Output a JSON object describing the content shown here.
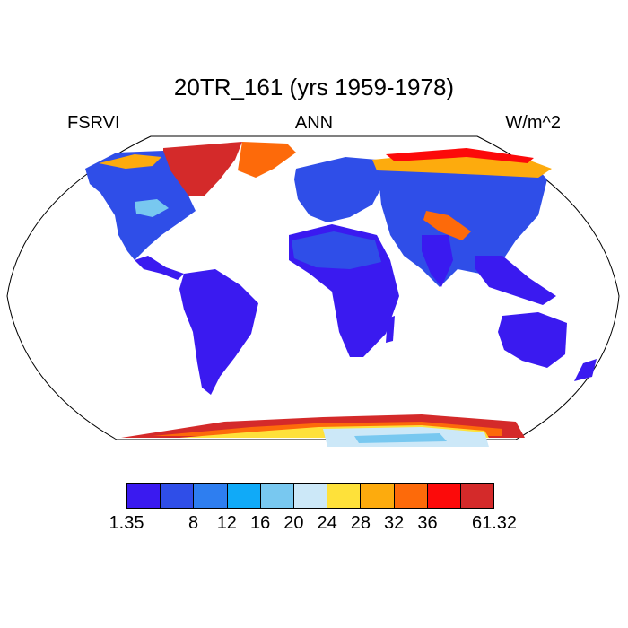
{
  "title": "20TR_161 (yrs 1959-1978)",
  "variable": "FSRVI",
  "season": "ANN",
  "units": "W/m^2",
  "colorbar": {
    "colors": [
      "#3a1af0",
      "#2f4ee8",
      "#2e7ef0",
      "#10aaf8",
      "#78c8f0",
      "#cce8f8",
      "#fee13a",
      "#fdab0d",
      "#fd6a0a",
      "#fc0a0a",
      "#d42a2a"
    ],
    "labels": [
      "1.35",
      "8",
      "12",
      "16",
      "20",
      "24",
      "28",
      "32",
      "36",
      "61.32"
    ]
  },
  "map": {
    "projection": "Robinson",
    "field_description": "annual mean shortwave radiation field plotted over land, with ocean left blank"
  }
}
